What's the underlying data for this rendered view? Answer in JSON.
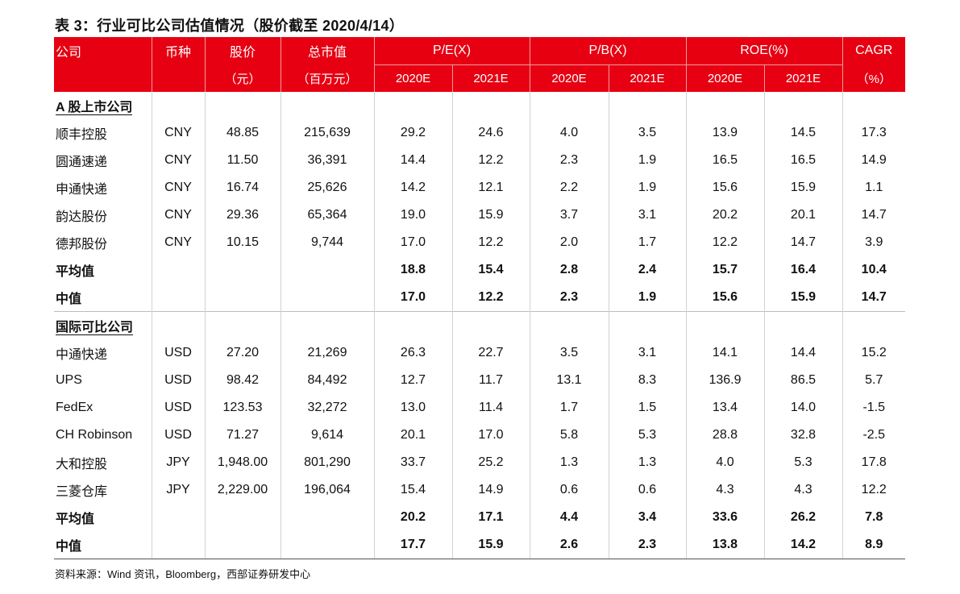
{
  "title": "表 3：行业可比公司估值情况（股价截至 2020/4/14）",
  "header": {
    "company": "公司",
    "currency": "币种",
    "price": "股价",
    "price_unit": "（元）",
    "mktcap": "总市值",
    "mktcap_unit": "（百万元）",
    "pe": "P/E(X)",
    "pb": "P/B(X)",
    "roe": "ROE(%)",
    "cagr": "CAGR",
    "cagr_unit": "（%）",
    "y2020": "2020E",
    "y2021": "2021E"
  },
  "sections": [
    {
      "name": "A 股上市公司",
      "rows": [
        {
          "name": "顺丰控股",
          "cur": "CNY",
          "price": "48.85",
          "cap": "215,639",
          "pe20": "29.2",
          "pe21": "24.6",
          "pb20": "4.0",
          "pb21": "3.5",
          "roe20": "13.9",
          "roe21": "14.5",
          "cagr": "17.3"
        },
        {
          "name": "圆通速递",
          "cur": "CNY",
          "price": "11.50",
          "cap": "36,391",
          "pe20": "14.4",
          "pe21": "12.2",
          "pb20": "2.3",
          "pb21": "1.9",
          "roe20": "16.5",
          "roe21": "16.5",
          "cagr": "14.9"
        },
        {
          "name": "申通快递",
          "cur": "CNY",
          "price": "16.74",
          "cap": "25,626",
          "pe20": "14.2",
          "pe21": "12.1",
          "pb20": "2.2",
          "pb21": "1.9",
          "roe20": "15.6",
          "roe21": "15.9",
          "cagr": "1.1"
        },
        {
          "name": "韵达股份",
          "cur": "CNY",
          "price": "29.36",
          "cap": "65,364",
          "pe20": "19.0",
          "pe21": "15.9",
          "pb20": "3.7",
          "pb21": "3.1",
          "roe20": "20.2",
          "roe21": "20.1",
          "cagr": "14.7"
        },
        {
          "name": "德邦股份",
          "cur": "CNY",
          "price": "10.15",
          "cap": "9,744",
          "pe20": "17.0",
          "pe21": "12.2",
          "pb20": "2.0",
          "pb21": "1.7",
          "roe20": "12.2",
          "roe21": "14.7",
          "cagr": "3.9"
        }
      ],
      "avg": {
        "name": "平均值",
        "pe20": "18.8",
        "pe21": "15.4",
        "pb20": "2.8",
        "pb21": "2.4",
        "roe20": "15.7",
        "roe21": "16.4",
        "cagr": "10.4"
      },
      "median": {
        "name": "中值",
        "pe20": "17.0",
        "pe21": "12.2",
        "pb20": "2.3",
        "pb21": "1.9",
        "roe20": "15.6",
        "roe21": "15.9",
        "cagr": "14.7"
      }
    },
    {
      "name": "国际可比公司",
      "rows": [
        {
          "name": "中通快递",
          "cur": "USD",
          "price": "27.20",
          "cap": "21,269",
          "pe20": "26.3",
          "pe21": "22.7",
          "pb20": "3.5",
          "pb21": "3.1",
          "roe20": "14.1",
          "roe21": "14.4",
          "cagr": "15.2"
        },
        {
          "name": "UPS",
          "cur": "USD",
          "price": "98.42",
          "cap": "84,492",
          "pe20": "12.7",
          "pe21": "11.7",
          "pb20": "13.1",
          "pb21": "8.3",
          "roe20": "136.9",
          "roe21": "86.5",
          "cagr": "5.7"
        },
        {
          "name": "FedEx",
          "cur": "USD",
          "price": "123.53",
          "cap": "32,272",
          "pe20": "13.0",
          "pe21": "11.4",
          "pb20": "1.7",
          "pb21": "1.5",
          "roe20": "13.4",
          "roe21": "14.0",
          "cagr": "-1.5"
        },
        {
          "name": "CH Robinson",
          "cur": "USD",
          "price": "71.27",
          "cap": "9,614",
          "pe20": "20.1",
          "pe21": "17.0",
          "pb20": "5.8",
          "pb21": "5.3",
          "roe20": "28.8",
          "roe21": "32.8",
          "cagr": "-2.5"
        },
        {
          "name": "大和控股",
          "cur": "JPY",
          "price": "1,948.00",
          "cap": "801,290",
          "pe20": "33.7",
          "pe21": "25.2",
          "pb20": "1.3",
          "pb21": "1.3",
          "roe20": "4.0",
          "roe21": "5.3",
          "cagr": "17.8"
        },
        {
          "name": "三菱仓库",
          "cur": "JPY",
          "price": "2,229.00",
          "cap": "196,064",
          "pe20": "15.4",
          "pe21": "14.9",
          "pb20": "0.6",
          "pb21": "0.6",
          "roe20": "4.3",
          "roe21": "4.3",
          "cagr": "12.2"
        }
      ],
      "avg": {
        "name": "平均值",
        "pe20": "20.2",
        "pe21": "17.1",
        "pb20": "4.4",
        "pb21": "3.4",
        "roe20": "33.6",
        "roe21": "26.2",
        "cagr": "7.8"
      },
      "median": {
        "name": "中值",
        "pe20": "17.7",
        "pe21": "15.9",
        "pb20": "2.6",
        "pb21": "2.3",
        "roe20": "13.8",
        "roe21": "14.2",
        "cagr": "8.9"
      }
    }
  ],
  "source": "资料来源：Wind 资讯，Bloomberg，西部证券研发中心",
  "colors": {
    "header_bg": "#e60012",
    "header_text": "#ffffff"
  }
}
